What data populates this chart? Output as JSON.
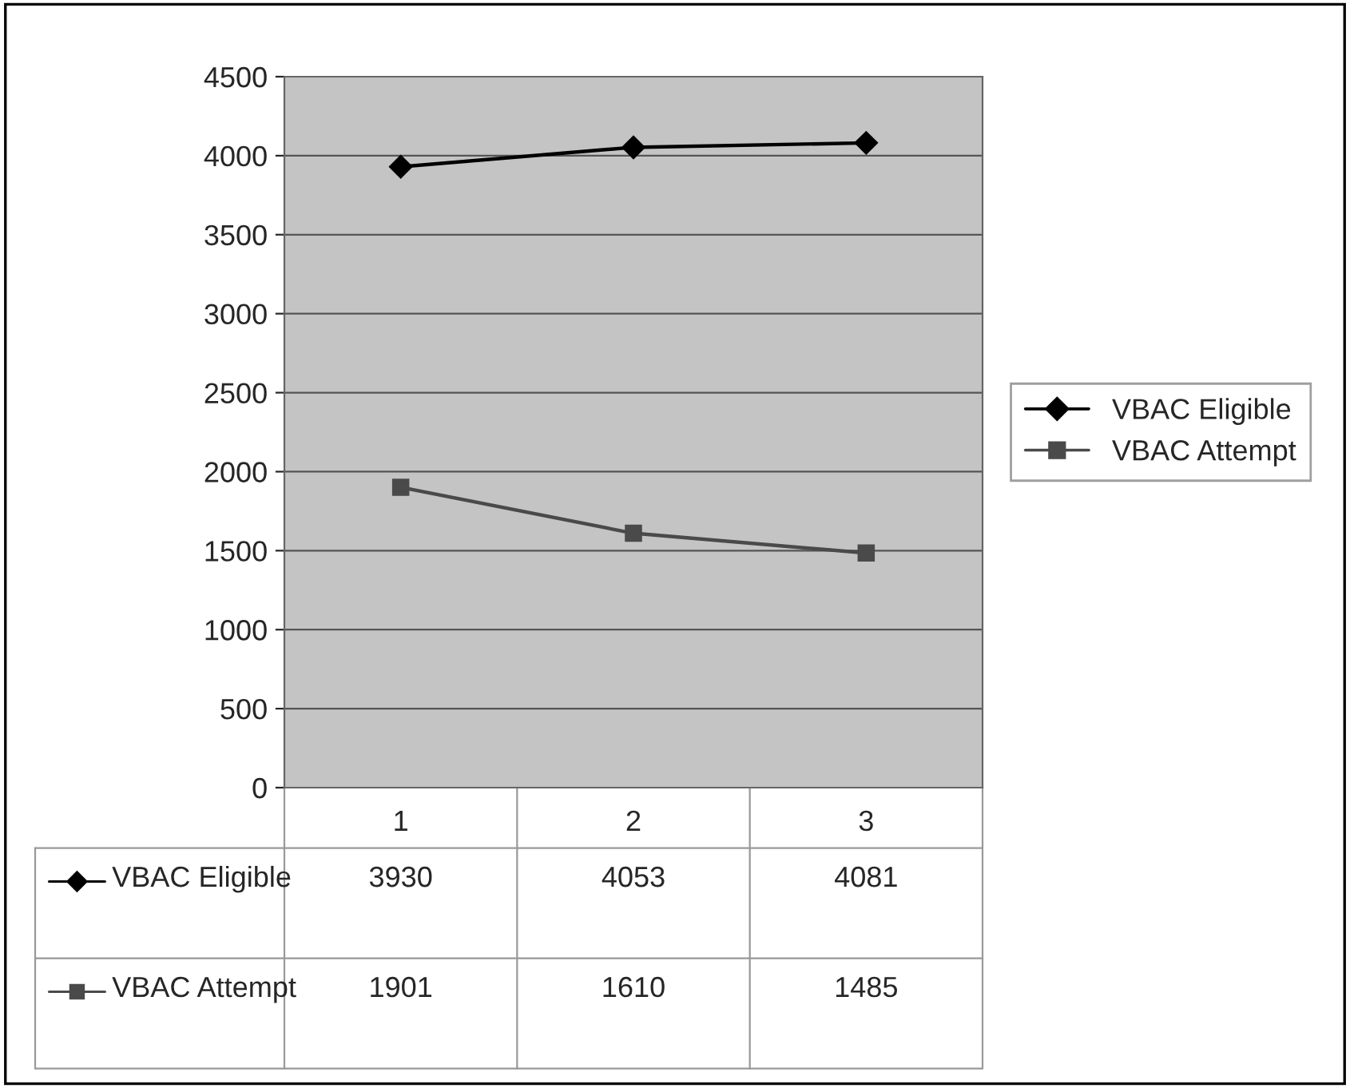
{
  "chart_data": {
    "type": "line",
    "categories": [
      "1",
      "2",
      "3"
    ],
    "series": [
      {
        "name": "VBAC Eligible",
        "color": "#000000",
        "marker": "diamond",
        "values": [
          3930,
          4053,
          4081
        ]
      },
      {
        "name": "VBAC Attempt",
        "color": "#4a4a4a",
        "marker": "square",
        "values": [
          1901,
          1610,
          1485
        ]
      }
    ],
    "ylim": [
      0,
      4500
    ],
    "yticks": [
      0,
      500,
      1000,
      1500,
      2000,
      2500,
      3000,
      3500,
      4000,
      4500
    ],
    "grid": "y",
    "legend": "right",
    "data_labels": true,
    "line_style": "solid"
  }
}
